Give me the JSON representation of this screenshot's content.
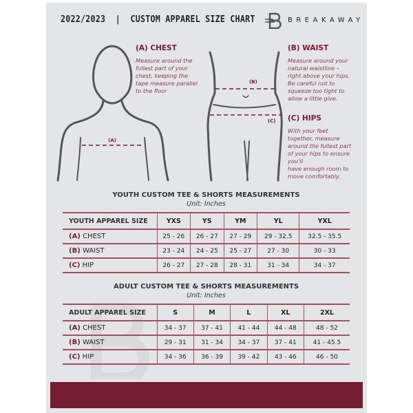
{
  "header": {
    "title": "2022/2023  |  CUSTOM APPAREL SIZE CHART",
    "brand": "BREAKAWAY",
    "logo_letter": "B"
  },
  "colors": {
    "accent": "#741c32",
    "panel": "#e4e5e7"
  },
  "guide": {
    "chest": {
      "heading": "(A) CHEST",
      "marker": "(A)",
      "text": [
        "Measure around the",
        "fullest part of your",
        "chest, keeping the",
        "tape measure parallel",
        "to the floor"
      ]
    },
    "waist": {
      "heading": "(B) WAIST",
      "marker": "(B)",
      "text": [
        "Measure around your",
        "natural waistline –",
        "right above your hips.",
        "Be careful not to",
        "squeeze too tight to",
        "allow a little give."
      ]
    },
    "hips": {
      "heading": "(C) HIPS",
      "marker": "(C)",
      "text": [
        "With your feet",
        "together, measure",
        "around the fullest part",
        "of your hips to ensure",
        "you'll",
        "have enough room to",
        "move comfortably."
      ]
    }
  },
  "youth": {
    "title": "YOUTH CUSTOM TEE & SHORTS MEASUREMENTS",
    "unit": "Unit: Inches",
    "header_label": "YOUTH APPAREL SIZE",
    "sizes": [
      "YXS",
      "YS",
      "YM",
      "YL",
      "YXL"
    ],
    "rows": [
      {
        "letter": "(A)",
        "name": "CHEST",
        "values": [
          "25 - 26",
          "26 - 27",
          "27 - 29",
          "29 - 32.5",
          "32.5 - 35.5"
        ]
      },
      {
        "letter": "(B)",
        "name": "WAIST",
        "values": [
          "23 - 24",
          "24 - 25",
          "25 - 27",
          "27 - 30",
          "30 - 33"
        ]
      },
      {
        "letter": "(C)",
        "name": "HIP",
        "values": [
          "26 - 27",
          "27 - 28",
          "28 - 31",
          "31 - 34",
          "34 - 37"
        ]
      }
    ]
  },
  "adult": {
    "title": "ADULT CUSTOM TEE & SHORTS MEASUREMENTS",
    "unit": "Unit: Inches",
    "header_label": "ADULT APPAREL SIZE",
    "sizes": [
      "S",
      "M",
      "L",
      "XL",
      "2XL"
    ],
    "rows": [
      {
        "letter": "(A)",
        "name": "CHEST",
        "values": [
          "34 - 37",
          "37 - 41",
          "41 - 44",
          "44 - 48",
          "48 - 52"
        ]
      },
      {
        "letter": "(B)",
        "name": "WAIST",
        "values": [
          "29 - 31",
          "31 - 34",
          "34 - 37",
          "37 - 41",
          "41 - 45.5"
        ]
      },
      {
        "letter": "(C)",
        "name": "HIP",
        "values": [
          "34 - 36",
          "36 - 39",
          "39 - 42",
          "43 - 46",
          "46 - 50"
        ]
      }
    ]
  }
}
